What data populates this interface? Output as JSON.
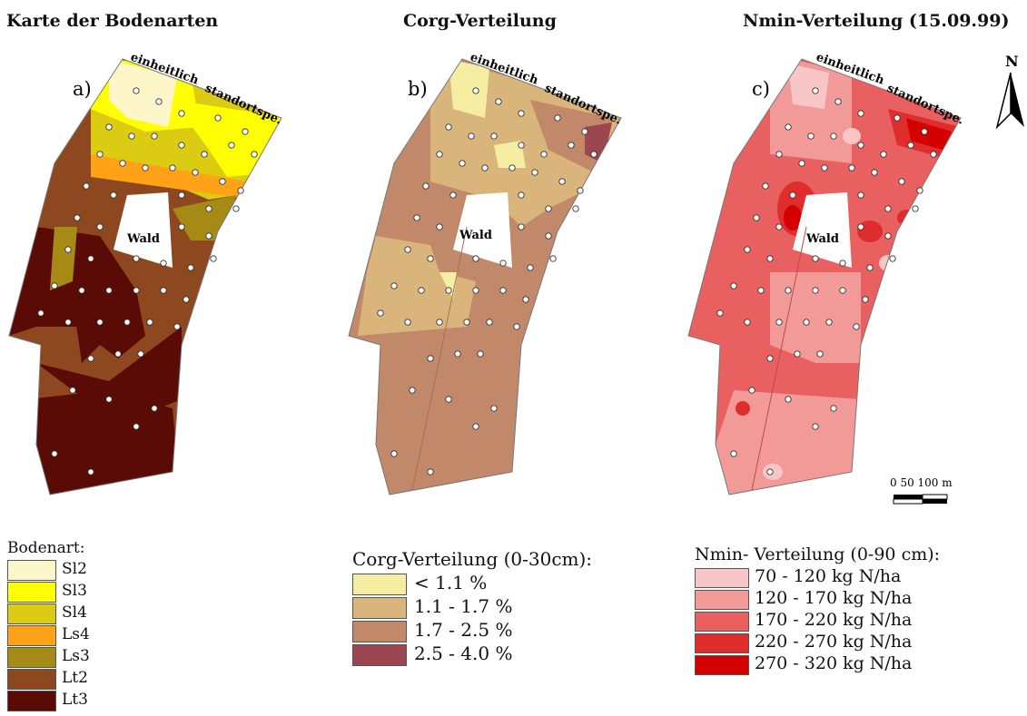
{
  "titles": {
    "a": "Karte der Bodenarten",
    "b": "Corg-Verteilung",
    "c": "Nmin-Verteilung (15.09.99)"
  },
  "panel_letters": {
    "a": "a)",
    "b": "b)",
    "c": "c)"
  },
  "strip_labels": {
    "left": "einheitlich",
    "right": "standortspe."
  },
  "forest_label": "Wald",
  "north_label": "N",
  "scale_bar": {
    "label": "0  50  100 m"
  },
  "legend_a": {
    "title": "Bodenart:",
    "items": [
      {
        "label": "Sl2",
        "color": "#fdf6c9"
      },
      {
        "label": "Sl3",
        "color": "#ffff00"
      },
      {
        "label": "Sl4",
        "color": "#dccb13"
      },
      {
        "label": "Ls4",
        "color": "#ffa218"
      },
      {
        "label": "Ls3",
        "color": "#a68a16"
      },
      {
        "label": "Lt2",
        "color": "#8e4820"
      },
      {
        "label": "Lt3",
        "color": "#5a0b05"
      }
    ]
  },
  "legend_b": {
    "title": "Corg-Verteilung (0-30cm):",
    "items": [
      {
        "label": "< 1.1 %",
        "color": "#f5eea2"
      },
      {
        "label": "1.1 - 1.7 %",
        "color": "#d9b57c"
      },
      {
        "label": "1.7 - 2.5 %",
        "color": "#c1896a"
      },
      {
        "label": "2.5 - 4.0 %",
        "color": "#9b4650"
      }
    ]
  },
  "legend_c": {
    "title": "Nmin- Verteilung (0-90 cm):",
    "items": [
      {
        "label": "70 - 120 kg N/ha",
        "color": "#f8c6c6"
      },
      {
        "label": "120 - 170 kg N/ha",
        "color": "#f19a98"
      },
      {
        "label": "170 - 220 kg N/ha",
        "color": "#e8605f"
      },
      {
        "label": "220 - 270 kg N/ha",
        "color": "#df2d2d"
      },
      {
        "label": "270 - 320 kg N/ha",
        "color": "#d40000"
      }
    ]
  }
}
